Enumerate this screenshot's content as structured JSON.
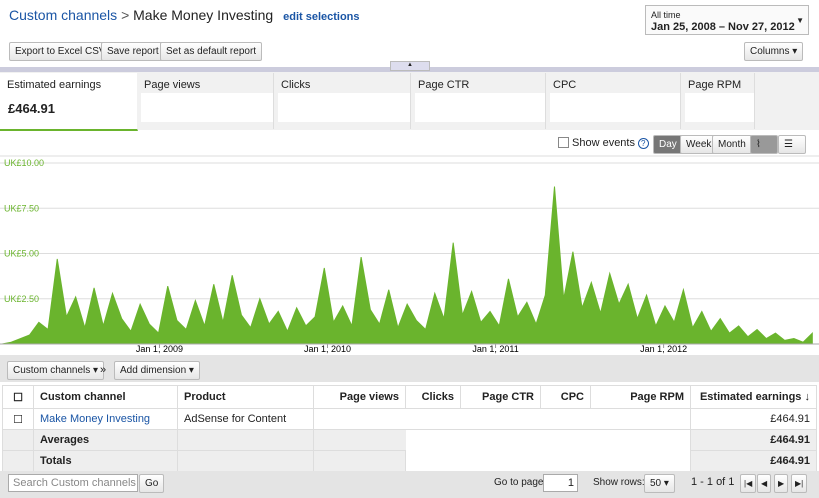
{
  "header": {
    "breadcrumb": "Custom channels",
    "separator": ">",
    "title": "Make Money Investing",
    "edit": "edit selections",
    "range_label": "All time",
    "range": "Jan 25, 2008 – Nov 27, 2012"
  },
  "toolbar": {
    "buttons": [
      "Export to Excel CSV",
      "Save report",
      "Set as default report"
    ],
    "columns": "Columns"
  },
  "metrics": [
    {
      "label": "Estimated earnings",
      "value": "£464.91"
    },
    {
      "label": "Page views"
    },
    {
      "label": "Clicks"
    },
    {
      "label": "Page CTR"
    },
    {
      "label": "CPC"
    },
    {
      "label": "Page RPM"
    }
  ],
  "chart_controls": {
    "show_events": "Show events",
    "help": "?",
    "periods": [
      "Day",
      "Week",
      "Month"
    ]
  },
  "chart_data": {
    "type": "area",
    "color": "#6ab42d",
    "grid": true,
    "x": [
      0,
      20,
      40,
      60,
      80,
      100,
      120,
      140,
      160,
      180,
      200,
      220,
      240,
      260,
      280,
      300,
      320,
      340,
      360,
      380,
      400,
      420,
      440,
      460,
      480,
      500,
      520,
      540,
      560,
      580,
      600,
      620,
      640,
      660,
      680,
      700,
      720,
      740,
      760,
      780,
      800,
      820,
      840,
      860,
      880,
      900,
      920,
      940,
      960,
      980,
      1000,
      1020,
      1040,
      1060,
      1080,
      1100,
      1120,
      1140,
      1160,
      1180,
      1200,
      1220,
      1240,
      1260,
      1280,
      1300,
      1320,
      1340,
      1360,
      1380,
      1400,
      1420,
      1440,
      1460,
      1480,
      1500,
      1520,
      1540,
      1560,
      1580,
      1600,
      1620,
      1640,
      1660,
      1680,
      1700,
      1720,
      1740,
      1760
    ],
    "series": [
      {
        "name": "Estimated earnings",
        "values": [
          0.0,
          0.1,
          0.3,
          0.5,
          1.2,
          0.8,
          4.7,
          1.5,
          2.6,
          0.9,
          3.1,
          1.0,
          2.8,
          1.4,
          0.7,
          2.2,
          1.1,
          0.6,
          3.2,
          1.3,
          0.8,
          2.4,
          1.0,
          3.3,
          1.2,
          3.8,
          1.6,
          0.9,
          2.5,
          1.1,
          1.8,
          0.7,
          2.0,
          1.0,
          1.5,
          4.2,
          1.2,
          2.1,
          1.0,
          4.8,
          1.9,
          1.1,
          3.0,
          0.9,
          2.2,
          1.3,
          0.8,
          2.8,
          1.4,
          5.6,
          1.6,
          2.9,
          1.2,
          1.8,
          1.0,
          3.6,
          1.5,
          2.3,
          1.1,
          2.7,
          8.7,
          2.5,
          5.1,
          2.0,
          3.4,
          1.7,
          3.9,
          2.2,
          3.3,
          1.4,
          2.7,
          1.0,
          2.1,
          1.2,
          3.0,
          0.9,
          1.8,
          0.7,
          1.4,
          0.6,
          1.0,
          0.4,
          0.8,
          0.3,
          0.6,
          0.2,
          0.3,
          0.1,
          0.6
        ]
      }
    ],
    "xlim": [
      0,
      1768
    ],
    "xticks": [
      {
        "value": 342,
        "label": "Jan 1, 2009"
      },
      {
        "value": 707,
        "label": "Jan 1, 2010"
      },
      {
        "value": 1072,
        "label": "Jan 1, 2011"
      },
      {
        "value": 1437,
        "label": "Jan 1, 2012"
      }
    ],
    "ylim": [
      0,
      10
    ],
    "yticks": [
      {
        "value": 2.5,
        "label": "UK£2.50"
      },
      {
        "value": 5,
        "label": "UK£5.00"
      },
      {
        "value": 7.5,
        "label": "UK£7.50"
      },
      {
        "value": 10,
        "label": "UK£10.00"
      }
    ]
  },
  "dimension_bar": {
    "dimension": "Custom channels",
    "arrow": "»",
    "add": "Add dimension"
  },
  "table": {
    "headers": [
      "Custom channel",
      "Product",
      "Page views",
      "Clicks",
      "Page CTR",
      "CPC",
      "Page RPM",
      "Estimated earnings ↓"
    ],
    "rows": [
      {
        "channel": "Make Money Investing",
        "product": "AdSense for Content",
        "earnings": "£464.91"
      }
    ],
    "averages": {
      "label": "Averages",
      "earnings": "£464.91"
    },
    "totals": {
      "label": "Totals",
      "earnings": "£464.91"
    }
  },
  "footer": {
    "search": "Search Custom channels",
    "go": "Go",
    "page_label": "Go to page:",
    "page": "1",
    "rows_label": "Show rows:",
    "rows": "50",
    "range": "1 - 1 of 1"
  }
}
